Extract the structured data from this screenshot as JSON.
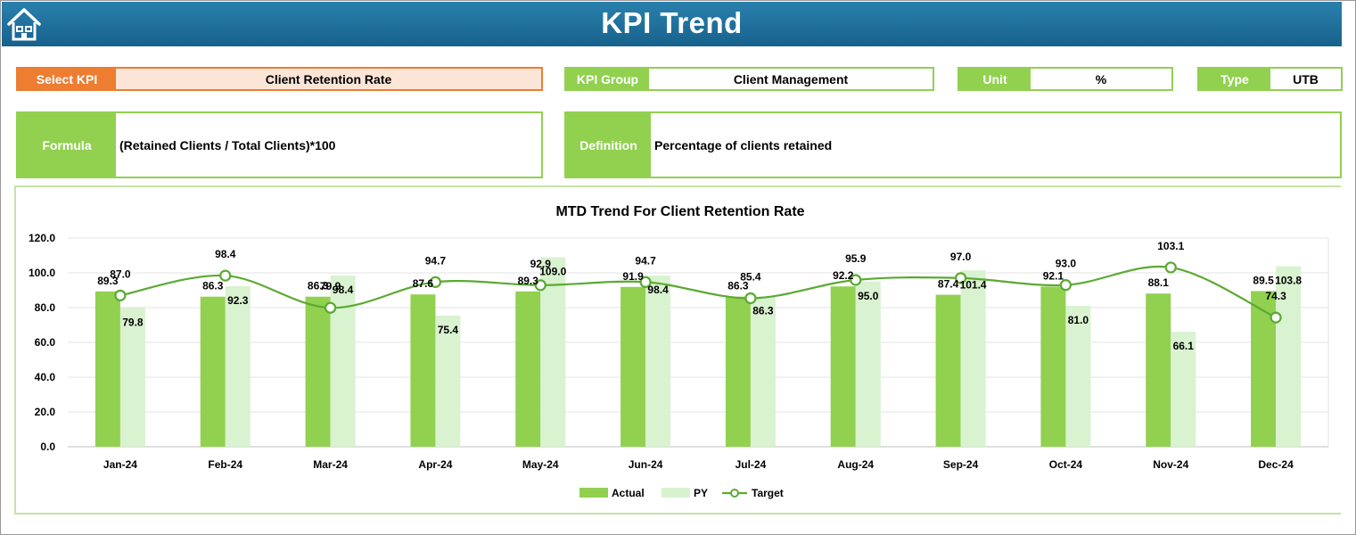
{
  "header": {
    "title": "KPI Trend",
    "icon": "home-icon"
  },
  "colors": {
    "header": "#1f6f9a",
    "accent_green": "#92d050",
    "accent_orange": "#ed7d31",
    "py_bar": "#d9f2d0",
    "target_line": "#5aaa32"
  },
  "kpi_selector": {
    "label": "Select KPI",
    "value": "Client Retention Rate"
  },
  "kpi_group": {
    "label": "KPI Group",
    "value": "Client Management"
  },
  "unit": {
    "label": "Unit",
    "value": "%"
  },
  "type": {
    "label": "Type",
    "value": "UTB"
  },
  "formula": {
    "label": "Formula",
    "value": "(Retained Clients / Total Clients)*100"
  },
  "definition": {
    "label": "Definition",
    "value": "Percentage of clients retained"
  },
  "chart_data": {
    "type": "bar",
    "title": "MTD Trend For Client Retention Rate",
    "categories": [
      "Jan-24",
      "Feb-24",
      "Mar-24",
      "Apr-24",
      "May-24",
      "Jun-24",
      "Jul-24",
      "Aug-24",
      "Sep-24",
      "Oct-24",
      "Nov-24",
      "Dec-24"
    ],
    "series": [
      {
        "name": "Actual",
        "kind": "bar",
        "values": [
          89.3,
          86.3,
          86.3,
          87.6,
          89.3,
          91.9,
          86.3,
          92.2,
          87.4,
          92.1,
          88.1,
          89.5
        ]
      },
      {
        "name": "PY",
        "kind": "bar",
        "values": [
          79.8,
          92.3,
          98.4,
          75.4,
          109.0,
          98.4,
          86.3,
          95.0,
          101.4,
          81.0,
          66.1,
          103.8
        ]
      },
      {
        "name": "Target",
        "kind": "line",
        "values": [
          87.0,
          98.4,
          79.9,
          94.7,
          92.9,
          94.7,
          85.4,
          95.9,
          97.0,
          93.0,
          103.1,
          74.3
        ]
      }
    ],
    "yticks": [
      "0.0",
      "20.0",
      "40.0",
      "60.0",
      "80.0",
      "100.0",
      "120.0"
    ],
    "ylim": [
      0,
      120
    ],
    "grid": true,
    "legend_position": "bottom"
  }
}
